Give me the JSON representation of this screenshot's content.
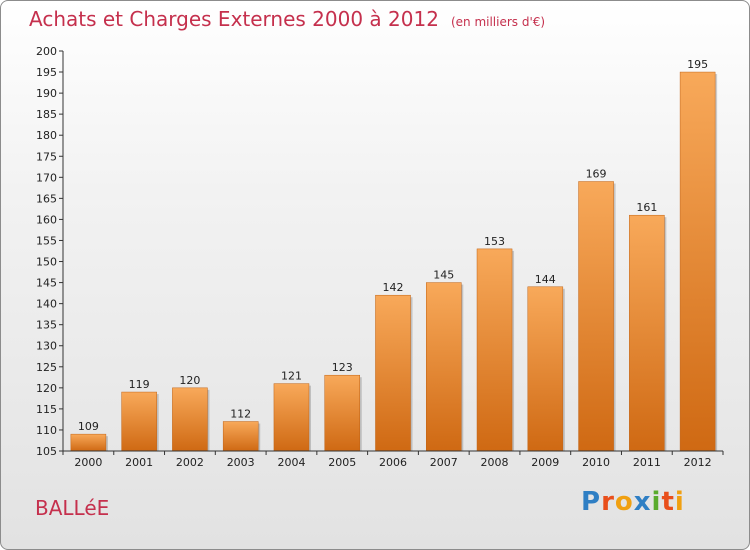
{
  "header": {
    "title": "Achats et Charges Externes 2000 à 2012",
    "subtitle": "(en milliers d'€)"
  },
  "footer": {
    "town": "BALLéE",
    "logo_letters": [
      "P",
      "r",
      "o",
      "x",
      "i",
      "t",
      "i"
    ]
  },
  "colors": {
    "title": "#c5304d",
    "bar_top": "#f7a553",
    "bar_bottom": "#d06a15",
    "axis": "#333333"
  },
  "chart_data": {
    "type": "bar",
    "title": "Achats et Charges Externes 2000 à 2012",
    "subtitle": "(en milliers d'€)",
    "xlabel": "",
    "ylabel": "",
    "categories": [
      "2000",
      "2001",
      "2002",
      "2003",
      "2004",
      "2005",
      "2006",
      "2007",
      "2008",
      "2009",
      "2010",
      "2011",
      "2012"
    ],
    "values": [
      109,
      119,
      120,
      112,
      121,
      123,
      142,
      145,
      153,
      144,
      169,
      161,
      195
    ],
    "ylim": [
      105,
      200
    ],
    "ytick_step": 5,
    "grid": false,
    "data_labels": true
  }
}
